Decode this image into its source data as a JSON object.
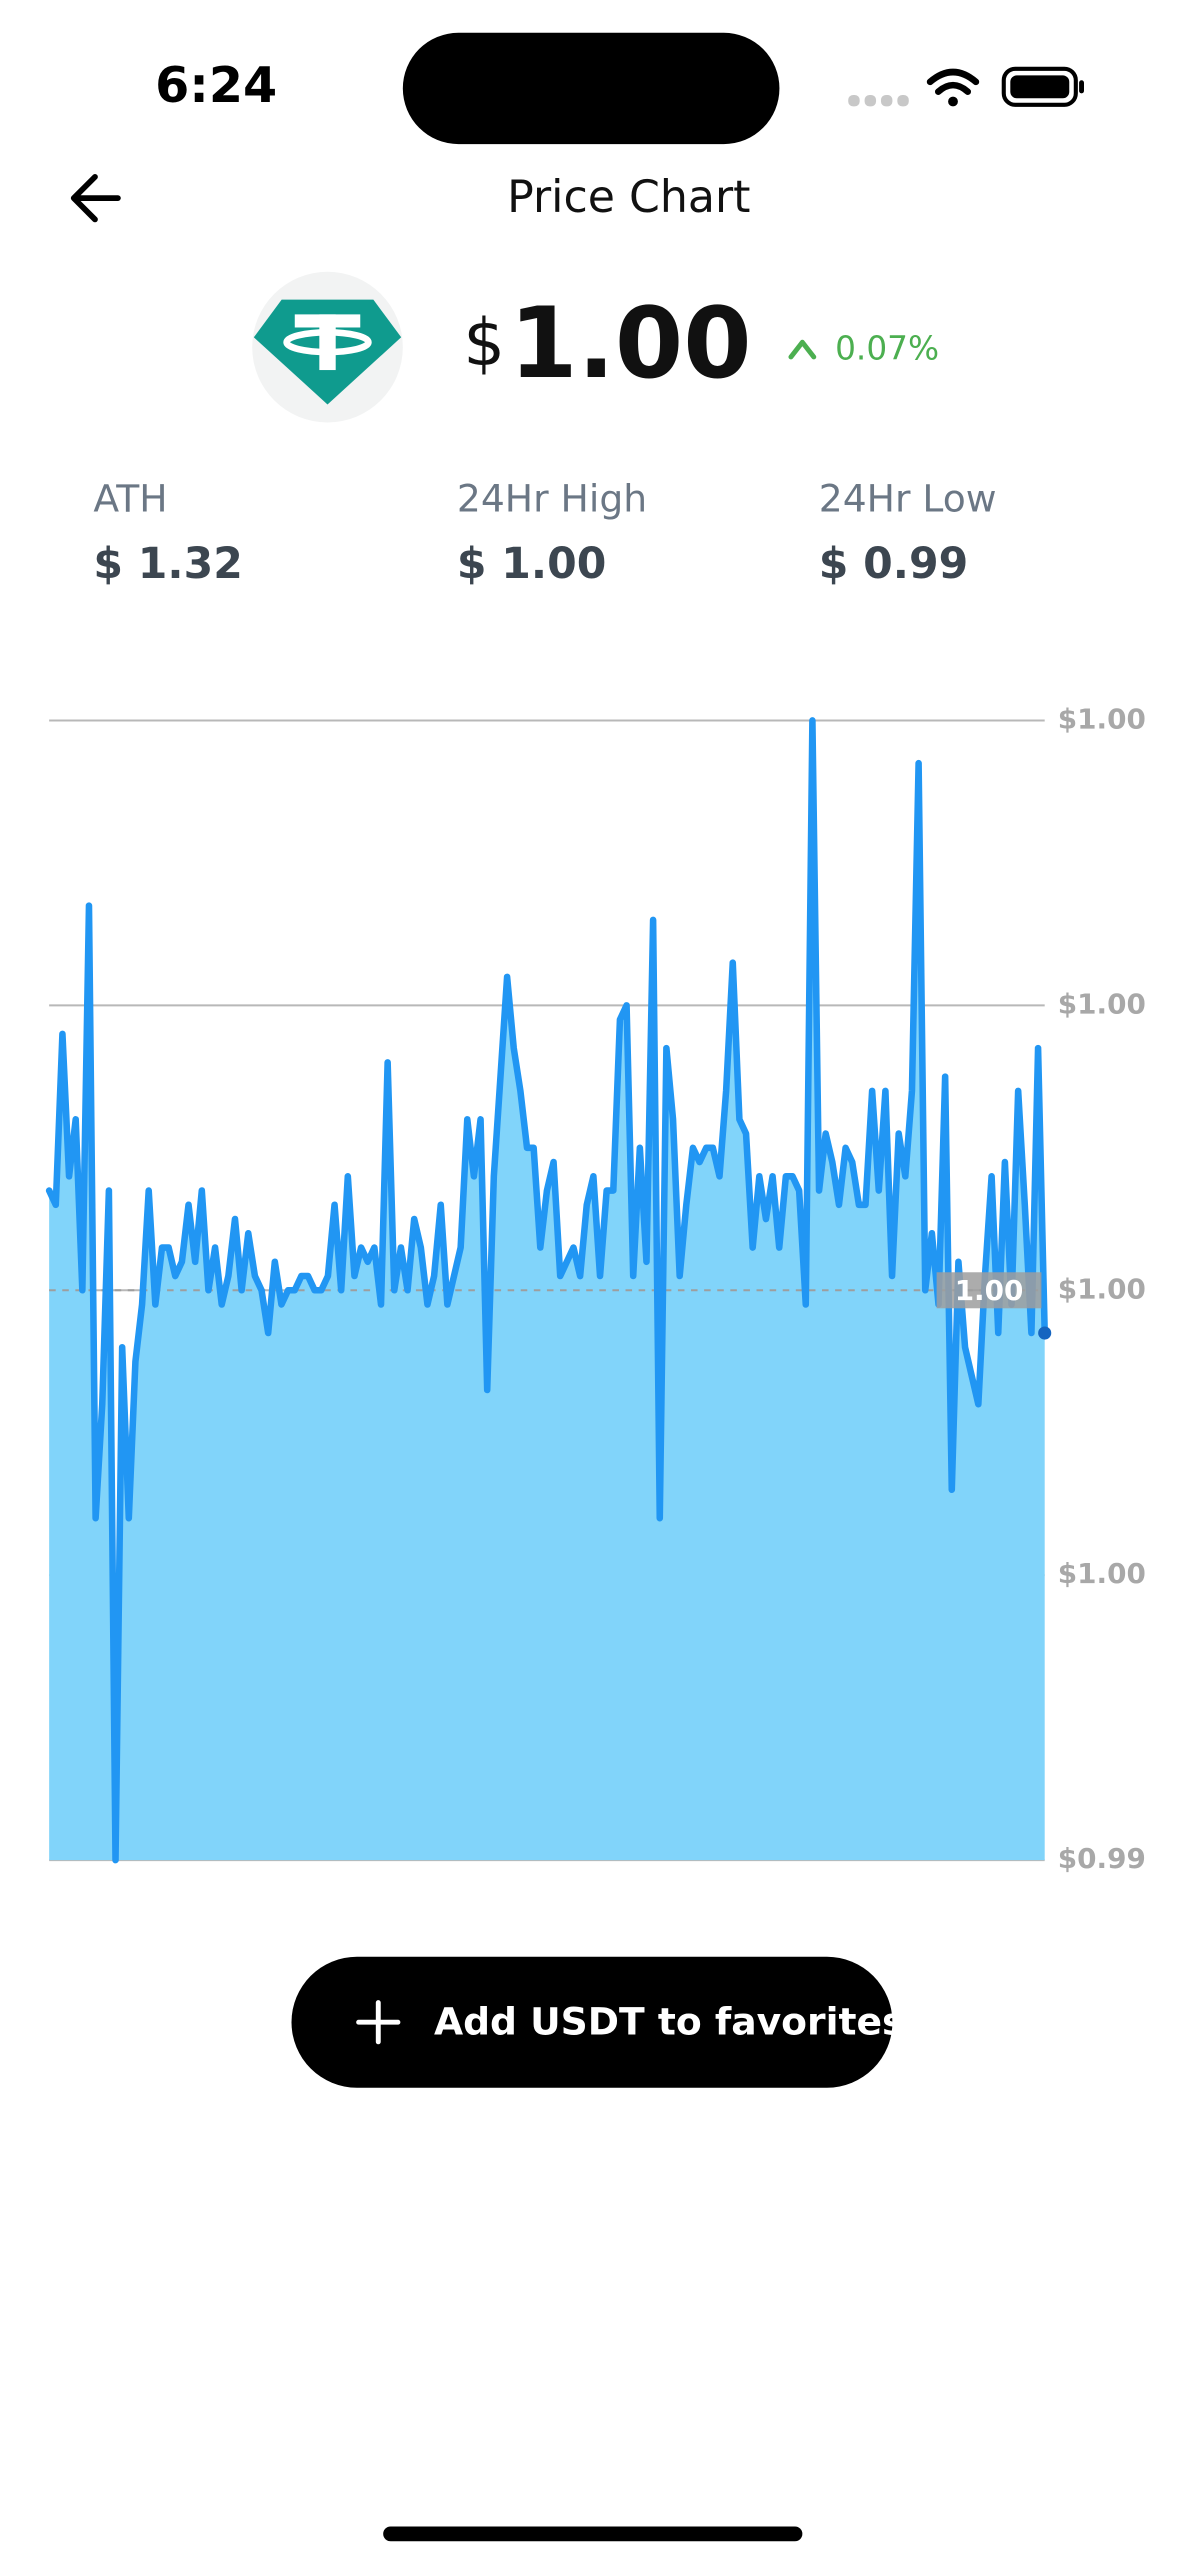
{
  "status_bar": {
    "time": "6:24"
  },
  "header": {
    "title": "Price Chart"
  },
  "price": {
    "currency": "$",
    "amount": "1.00",
    "change": "0.07%"
  },
  "stats": [
    {
      "label": "ATH",
      "value": "$ 1.32"
    },
    {
      "label": "24Hr High",
      "value": "$ 1.00"
    },
    {
      "label": "24Hr Low",
      "value": "$ 0.99"
    }
  ],
  "chart_data": {
    "type": "area",
    "values": [
      0.99537,
      0.99536,
      0.99548,
      0.99538,
      0.99542,
      0.9953,
      0.99557,
      0.99514,
      0.99522,
      0.99537,
      0.9949,
      0.99526,
      0.99514,
      0.99525,
      0.99529,
      0.99537,
      0.99529,
      0.99533,
      0.99533,
      0.99531,
      0.99532,
      0.99536,
      0.99532,
      0.99537,
      0.9953,
      0.99533,
      0.99529,
      0.99531,
      0.99535,
      0.9953,
      0.99534,
      0.99531,
      0.9953,
      0.99527,
      0.99532,
      0.99529,
      0.9953,
      0.9953,
      0.99531,
      0.99531,
      0.9953,
      0.9953,
      0.99531,
      0.99536,
      0.9953,
      0.99538,
      0.99531,
      0.99533,
      0.99532,
      0.99533,
      0.99529,
      0.99546,
      0.9953,
      0.99533,
      0.9953,
      0.99535,
      0.99533,
      0.99529,
      0.99531,
      0.99536,
      0.99529,
      0.99531,
      0.99533,
      0.99542,
      0.99538,
      0.99542,
      0.99523,
      0.99538,
      0.99545,
      0.99552,
      0.99547,
      0.99544,
      0.9954,
      0.9954,
      0.99533,
      0.99537,
      0.99539,
      0.99531,
      0.99532,
      0.99533,
      0.99531,
      0.99536,
      0.99538,
      0.99531,
      0.99537,
      0.99537,
      0.99549,
      0.9955,
      0.99531,
      0.9954,
      0.99532,
      0.99556,
      0.99514,
      0.99547,
      0.99542,
      0.99531,
      0.99536,
      0.9954,
      0.99539,
      0.9954,
      0.9954,
      0.99538,
      0.99544,
      0.99553,
      0.99542,
      0.99541,
      0.99533,
      0.99538,
      0.99535,
      0.99538,
      0.99533,
      0.99538,
      0.99538,
      0.99537,
      0.99529,
      0.9957,
      0.99537,
      0.99541,
      0.99539,
      0.99536,
      0.9954,
      0.99539,
      0.99536,
      0.99536,
      0.99544,
      0.99537,
      0.99544,
      0.99531,
      0.99541,
      0.99538,
      0.99544,
      0.99567,
      0.9953,
      0.99534,
      0.99529,
      0.99545,
      0.99516,
      0.99532,
      0.99526,
      0.99524,
      0.99522,
      0.99531,
      0.99538,
      0.99527,
      0.99539,
      0.99529,
      0.99544,
      0.99536,
      0.99527,
      0.99547,
      0.99527
    ],
    "color": "#2196f3",
    "fill": "#81d4fa",
    "ylim": [
      0.9949,
      0.9957
    ],
    "yticks": [
      {
        "value": 0.9949,
        "label": "$0.99"
      },
      {
        "value": 0.9951,
        "label": "$1.00"
      },
      {
        "value": 0.9953,
        "label": "$1.00"
      },
      {
        "value": 0.9955,
        "label": "$1.00"
      },
      {
        "value": 0.9957,
        "label": "$1.00"
      }
    ],
    "grid": true,
    "reference_line": 0.9953,
    "current_label": "1.00"
  },
  "button": {
    "label": "Add USDT to favorites"
  }
}
